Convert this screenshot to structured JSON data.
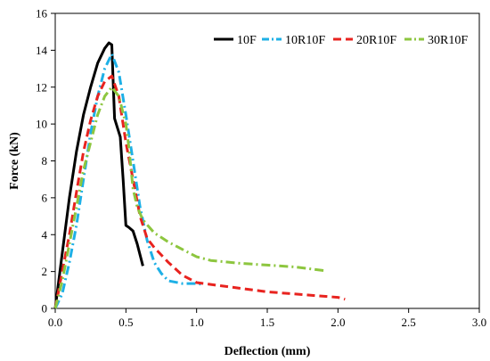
{
  "chart_data": {
    "type": "line",
    "title": "",
    "xlabel": "Deflection (mm)",
    "ylabel": "Force (kN)",
    "xlim": [
      0,
      3.0
    ],
    "ylim": [
      0,
      16
    ],
    "x_ticks": [
      "0.0",
      "0.5",
      "1.0",
      "1.5",
      "2.0",
      "2.5",
      "3.0"
    ],
    "y_ticks": [
      "0",
      "2",
      "4",
      "6",
      "8",
      "10",
      "12",
      "14",
      "16"
    ],
    "grid": false,
    "legend_position": "top-right",
    "series": [
      {
        "name": "10F",
        "color": "#000000",
        "dash": "solid",
        "points": [
          [
            0,
            0
          ],
          [
            0.05,
            3.0
          ],
          [
            0.1,
            6.0
          ],
          [
            0.15,
            8.5
          ],
          [
            0.2,
            10.5
          ],
          [
            0.25,
            12.0
          ],
          [
            0.3,
            13.3
          ],
          [
            0.35,
            14.1
          ],
          [
            0.38,
            14.4
          ],
          [
            0.4,
            14.3
          ],
          [
            0.41,
            12.2
          ],
          [
            0.42,
            10.3
          ],
          [
            0.44,
            9.8
          ],
          [
            0.46,
            9.3
          ],
          [
            0.48,
            7.0
          ],
          [
            0.5,
            4.5
          ],
          [
            0.52,
            4.4
          ],
          [
            0.55,
            4.2
          ],
          [
            0.58,
            3.5
          ],
          [
            0.62,
            2.3
          ]
        ]
      },
      {
        "name": "10R10F",
        "color": "#1EB0E6",
        "dash": "dashdot",
        "points": [
          [
            0,
            0
          ],
          [
            0.05,
            0.8
          ],
          [
            0.1,
            2.5
          ],
          [
            0.15,
            4.5
          ],
          [
            0.2,
            7.0
          ],
          [
            0.25,
            9.5
          ],
          [
            0.3,
            11.5
          ],
          [
            0.35,
            13.0
          ],
          [
            0.4,
            13.8
          ],
          [
            0.45,
            12.8
          ],
          [
            0.5,
            10.5
          ],
          [
            0.55,
            8.0
          ],
          [
            0.6,
            5.5
          ],
          [
            0.65,
            3.7
          ],
          [
            0.7,
            2.5
          ],
          [
            0.75,
            1.9
          ],
          [
            0.8,
            1.5
          ],
          [
            0.9,
            1.35
          ],
          [
            1.0,
            1.35
          ],
          [
            1.05,
            1.3
          ]
        ]
      },
      {
        "name": "20R10F",
        "color": "#E8231F",
        "dash": "dashed",
        "points": [
          [
            0,
            0
          ],
          [
            0.05,
            2.0
          ],
          [
            0.1,
            4.0
          ],
          [
            0.15,
            6.3
          ],
          [
            0.2,
            8.5
          ],
          [
            0.25,
            10.2
          ],
          [
            0.3,
            11.5
          ],
          [
            0.35,
            12.3
          ],
          [
            0.4,
            12.6
          ],
          [
            0.45,
            11.5
          ],
          [
            0.5,
            9.0
          ],
          [
            0.55,
            7.0
          ],
          [
            0.6,
            5.0
          ],
          [
            0.65,
            3.8
          ],
          [
            0.7,
            3.3
          ],
          [
            0.8,
            2.5
          ],
          [
            0.9,
            1.8
          ],
          [
            1.0,
            1.4
          ],
          [
            1.1,
            1.3
          ],
          [
            1.5,
            0.9
          ],
          [
            2.0,
            0.6
          ],
          [
            2.05,
            0.5
          ]
        ]
      },
      {
        "name": "30R10F",
        "color": "#8DC63F",
        "dash": "dashdot",
        "points": [
          [
            0,
            0
          ],
          [
            0.05,
            1.5
          ],
          [
            0.1,
            3.5
          ],
          [
            0.15,
            5.5
          ],
          [
            0.2,
            7.5
          ],
          [
            0.25,
            9.0
          ],
          [
            0.3,
            10.5
          ],
          [
            0.35,
            11.5
          ],
          [
            0.4,
            12.0
          ],
          [
            0.45,
            11.5
          ],
          [
            0.5,
            10.0
          ],
          [
            0.52,
            8.8
          ],
          [
            0.55,
            6.5
          ],
          [
            0.58,
            5.5
          ],
          [
            0.62,
            4.8
          ],
          [
            0.7,
            4.1
          ],
          [
            0.8,
            3.6
          ],
          [
            0.9,
            3.2
          ],
          [
            1.0,
            2.8
          ],
          [
            1.1,
            2.6
          ],
          [
            1.3,
            2.45
          ],
          [
            1.5,
            2.35
          ],
          [
            1.7,
            2.25
          ],
          [
            1.9,
            2.05
          ]
        ]
      }
    ]
  }
}
